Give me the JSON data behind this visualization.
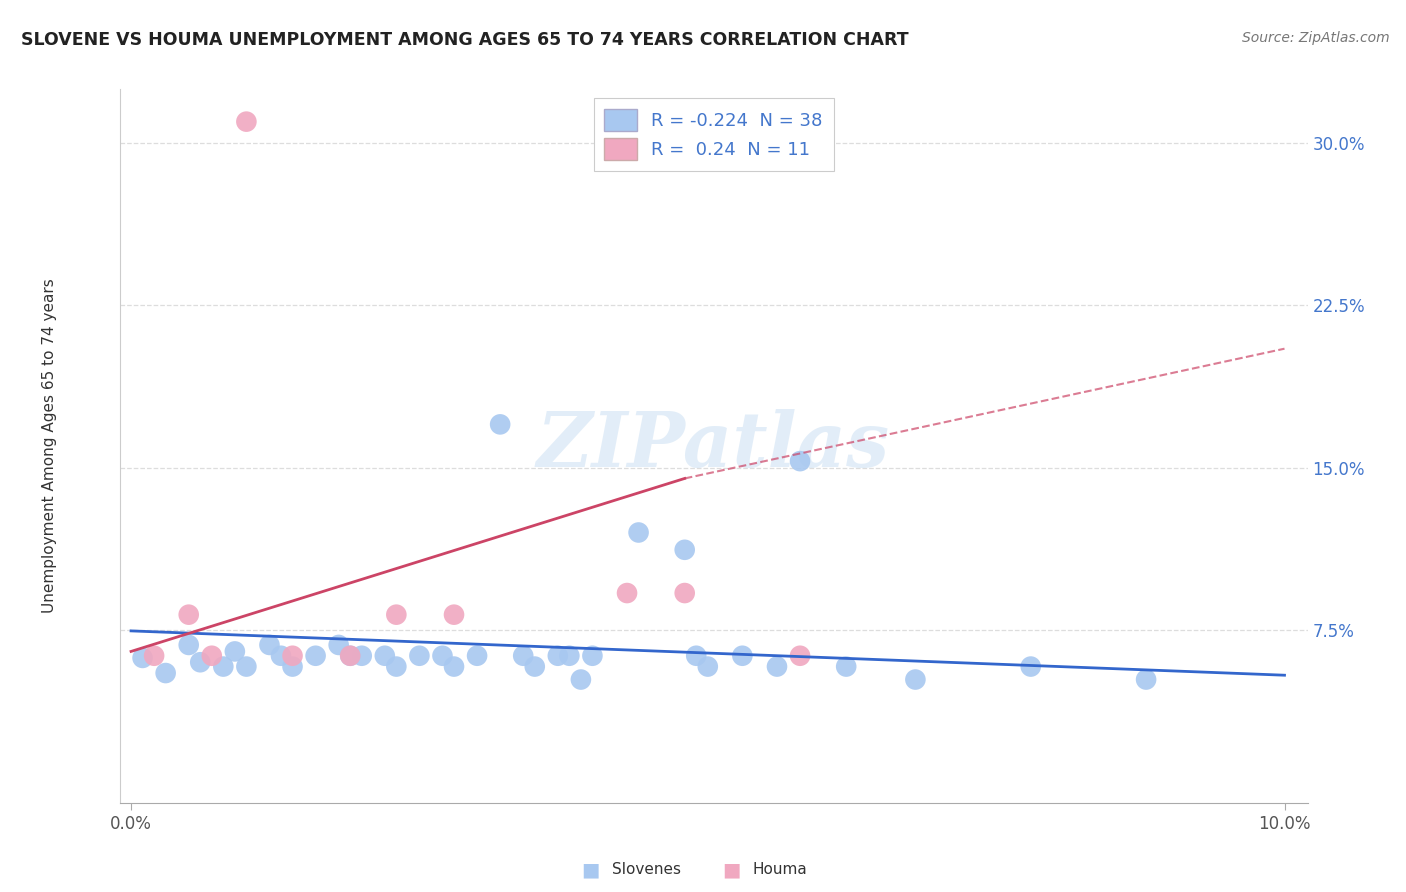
{
  "title": "SLOVENE VS HOUMA UNEMPLOYMENT AMONG AGES 65 TO 74 YEARS CORRELATION CHART",
  "source": "Source: ZipAtlas.com",
  "ylabel": "Unemployment Among Ages 65 to 74 years",
  "xlim": [
    -0.001,
    0.102
  ],
  "ylim": [
    -0.005,
    0.325
  ],
  "xticks": [
    0.0,
    0.1
  ],
  "xtick_labels": [
    "0.0%",
    "10.0%"
  ],
  "yticks": [
    0.075,
    0.15,
    0.225,
    0.3
  ],
  "ytick_labels": [
    "7.5%",
    "15.0%",
    "22.5%",
    "30.0%"
  ],
  "background_color": "#ffffff",
  "grid_color": "#dddddd",
  "watermark": "ZIPatlas",
  "legend_labels": [
    "Slovenes",
    "Houma"
  ],
  "slovene_color": "#a8c8f0",
  "houma_color": "#f0a8c0",
  "slovene_line_color": "#3366cc",
  "houma_line_color": "#cc4466",
  "R_slovene": -0.224,
  "N_slovene": 38,
  "R_houma": 0.24,
  "N_houma": 11,
  "slovene_points": [
    [
      0.001,
      0.062
    ],
    [
      0.003,
      0.055
    ],
    [
      0.005,
      0.068
    ],
    [
      0.006,
      0.06
    ],
    [
      0.008,
      0.058
    ],
    [
      0.009,
      0.065
    ],
    [
      0.01,
      0.058
    ],
    [
      0.012,
      0.068
    ],
    [
      0.013,
      0.063
    ],
    [
      0.014,
      0.058
    ],
    [
      0.016,
      0.063
    ],
    [
      0.018,
      0.068
    ],
    [
      0.019,
      0.063
    ],
    [
      0.02,
      0.063
    ],
    [
      0.022,
      0.063
    ],
    [
      0.023,
      0.058
    ],
    [
      0.025,
      0.063
    ],
    [
      0.027,
      0.063
    ],
    [
      0.028,
      0.058
    ],
    [
      0.03,
      0.063
    ],
    [
      0.032,
      0.17
    ],
    [
      0.034,
      0.063
    ],
    [
      0.035,
      0.058
    ],
    [
      0.037,
      0.063
    ],
    [
      0.038,
      0.063
    ],
    [
      0.039,
      0.052
    ],
    [
      0.04,
      0.063
    ],
    [
      0.044,
      0.12
    ],
    [
      0.048,
      0.112
    ],
    [
      0.049,
      0.063
    ],
    [
      0.05,
      0.058
    ],
    [
      0.053,
      0.063
    ],
    [
      0.056,
      0.058
    ],
    [
      0.058,
      0.153
    ],
    [
      0.062,
      0.058
    ],
    [
      0.068,
      0.052
    ],
    [
      0.078,
      0.058
    ],
    [
      0.088,
      0.052
    ]
  ],
  "houma_points": [
    [
      0.002,
      0.063
    ],
    [
      0.005,
      0.082
    ],
    [
      0.007,
      0.063
    ],
    [
      0.01,
      0.31
    ],
    [
      0.014,
      0.063
    ],
    [
      0.019,
      0.063
    ],
    [
      0.023,
      0.082
    ],
    [
      0.028,
      0.082
    ],
    [
      0.043,
      0.092
    ],
    [
      0.048,
      0.092
    ],
    [
      0.058,
      0.063
    ]
  ],
  "slovene_trend": [
    0.0,
    0.0745,
    0.1,
    0.054
  ],
  "houma_trend_solid": [
    0.0,
    0.065,
    0.048,
    0.145
  ],
  "houma_trend_dashed": [
    0.048,
    0.145,
    0.1,
    0.205
  ]
}
